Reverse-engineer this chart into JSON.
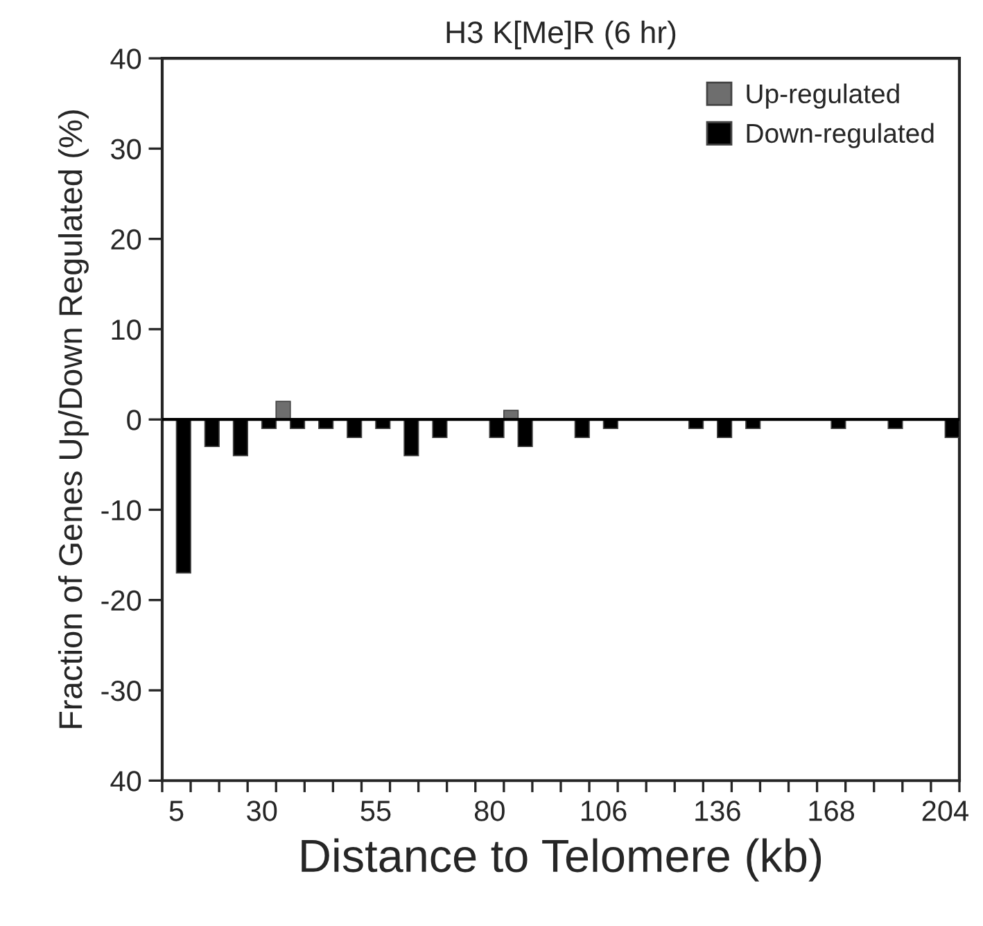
{
  "chart_data": {
    "type": "bar",
    "title": "H3 K[Me]R (6 hr)",
    "xlabel": "Distance to Telomere (kb)",
    "ylabel": "Fraction of Genes Up/Down Regulated (%)",
    "categories": [
      "5",
      null,
      null,
      "30",
      null,
      null,
      null,
      "55",
      null,
      null,
      null,
      "80",
      null,
      null,
      null,
      "106",
      null,
      null,
      null,
      "136",
      null,
      null,
      null,
      "168",
      null,
      null,
      null,
      "204"
    ],
    "series": [
      {
        "name": "Up-regulated",
        "color": "#6e6e6e",
        "values": [
          null,
          null,
          null,
          null,
          2,
          null,
          null,
          null,
          null,
          null,
          null,
          null,
          1,
          null,
          null,
          null,
          null,
          null,
          null,
          null,
          null,
          null,
          null,
          null,
          null,
          null,
          null,
          null
        ]
      },
      {
        "name": "Down-regulated",
        "color": "#000000",
        "values": [
          -17,
          -3,
          -4,
          -1,
          -1,
          -1,
          -2,
          -1,
          -4,
          -2,
          null,
          -2,
          -3,
          null,
          -2,
          -1,
          null,
          null,
          -1,
          -2,
          -1,
          null,
          null,
          -1,
          null,
          -1,
          null,
          -2
        ]
      }
    ],
    "ylim": [
      -40,
      40
    ],
    "yticks": [
      {
        "value": -40,
        "label": "40"
      },
      -30,
      -20,
      -10,
      0,
      10,
      20,
      30,
      40
    ],
    "ref_lines": [
      {
        "axis": "y",
        "value": 0,
        "color": "#000000",
        "line_style": "solid"
      }
    ],
    "grid": false,
    "legend": "top right"
  }
}
